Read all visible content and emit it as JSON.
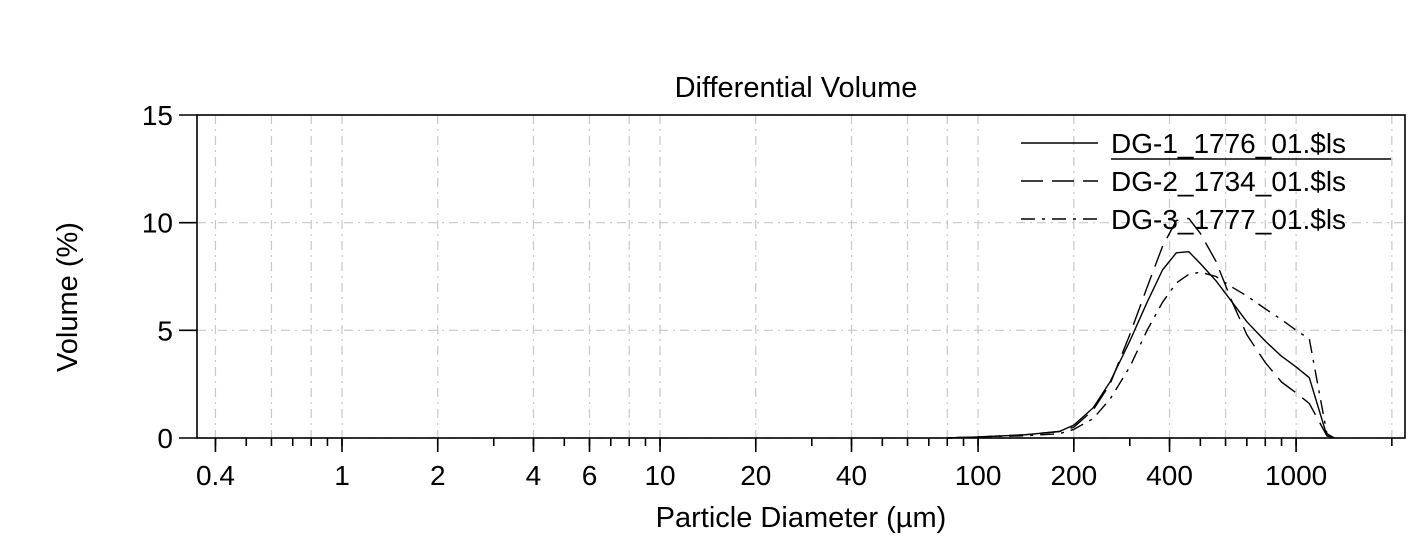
{
  "chart_data": {
    "type": "line",
    "title": "Differential Volume",
    "xlabel": "Particle Diameter (µm)",
    "ylabel": "Volume (%)",
    "x_scale": "log",
    "xlim": [
      0.35,
      2200
    ],
    "ylim": [
      0,
      15
    ],
    "x_ticks": [
      0.4,
      1,
      2,
      4,
      6,
      10,
      20,
      40,
      100,
      200,
      400,
      1000
    ],
    "x_tick_labels": [
      "0.4",
      "1",
      "2",
      "4",
      "6",
      "10",
      "20",
      "40",
      "100",
      "200",
      "400",
      "1000"
    ],
    "y_ticks": [
      0,
      5,
      10,
      15
    ],
    "y_tick_labels": [
      "0",
      "5",
      "10",
      "15"
    ],
    "grid": true,
    "legend_position": "top-right",
    "series": [
      {
        "name": "DG-1_1776_01.$ls",
        "style": "solid",
        "x": [
          80,
          100,
          140,
          180,
          200,
          230,
          260,
          300,
          340,
          380,
          420,
          460,
          500,
          560,
          630,
          700,
          800,
          900,
          1000,
          1100,
          1250,
          1320
        ],
        "y": [
          0,
          0.05,
          0.15,
          0.3,
          0.6,
          1.4,
          2.6,
          4.5,
          6.3,
          7.8,
          8.6,
          8.65,
          8.1,
          7.3,
          6.3,
          5.4,
          4.5,
          3.8,
          3.3,
          2.8,
          0.1,
          0
        ]
      },
      {
        "name": "DG-2_1734_01.$ls",
        "style": "dashed",
        "x": [
          80,
          100,
          140,
          180,
          200,
          230,
          260,
          300,
          340,
          380,
          420,
          460,
          500,
          560,
          630,
          700,
          800,
          900,
          1000,
          1100,
          1250,
          1320
        ],
        "y": [
          0,
          0.05,
          0.15,
          0.3,
          0.5,
          1.3,
          2.5,
          4.8,
          7.0,
          8.9,
          10.1,
          10.2,
          9.5,
          8.2,
          6.3,
          4.8,
          3.5,
          2.6,
          2.1,
          1.6,
          0.1,
          0
        ]
      },
      {
        "name": "DG-3_1777_01.$ls",
        "style": "dashdot",
        "x": [
          80,
          100,
          140,
          180,
          200,
          230,
          260,
          300,
          340,
          380,
          420,
          460,
          500,
          560,
          630,
          700,
          800,
          900,
          1000,
          1100,
          1250,
          1320
        ],
        "y": [
          0,
          0.05,
          0.1,
          0.2,
          0.4,
          0.9,
          1.8,
          3.3,
          5.0,
          6.3,
          7.2,
          7.6,
          7.7,
          7.5,
          7.0,
          6.6,
          6.0,
          5.5,
          5.0,
          4.6,
          0.2,
          0
        ]
      }
    ]
  }
}
